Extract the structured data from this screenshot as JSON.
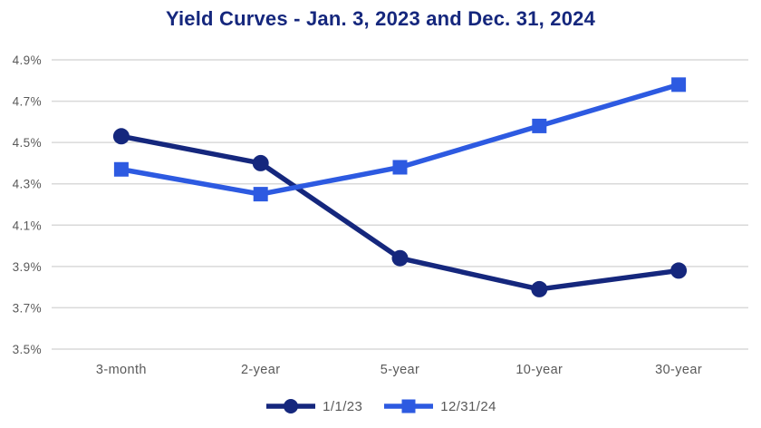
{
  "chart_data": {
    "type": "line",
    "title": "Yield Curves - Jan. 3, 2023 and Dec. 31, 2024",
    "categories": [
      "3-month",
      "2-year",
      "5-year",
      "10-year",
      "30-year"
    ],
    "series": [
      {
        "name": "1/1/23",
        "marker": "circle",
        "color": "#15277D",
        "values": [
          4.53,
          4.4,
          3.94,
          3.79,
          3.88
        ]
      },
      {
        "name": "12/31/24",
        "marker": "square",
        "color": "#2D5AE1",
        "values": [
          4.37,
          4.25,
          4.38,
          4.58,
          4.78
        ]
      }
    ],
    "xlabel": "",
    "ylabel": "",
    "ylim": [
      3.5,
      4.9
    ],
    "ytick_step": 0.2,
    "ytick_labels": [
      "3.5%",
      "3.7%",
      "3.9%",
      "4.1%",
      "4.3%",
      "4.5%",
      "4.7%",
      "4.9%"
    ],
    "grid": true,
    "legend_position": "bottom"
  },
  "colors": {
    "title": "#15277D",
    "axis_text": "#595959",
    "gridline": "#D9D9D9",
    "background": "#FFFFFF",
    "series1": "#15277D",
    "series2": "#2D5AE1"
  },
  "legend": {
    "items": [
      {
        "label": "1/1/23"
      },
      {
        "label": "12/31/24"
      }
    ]
  }
}
